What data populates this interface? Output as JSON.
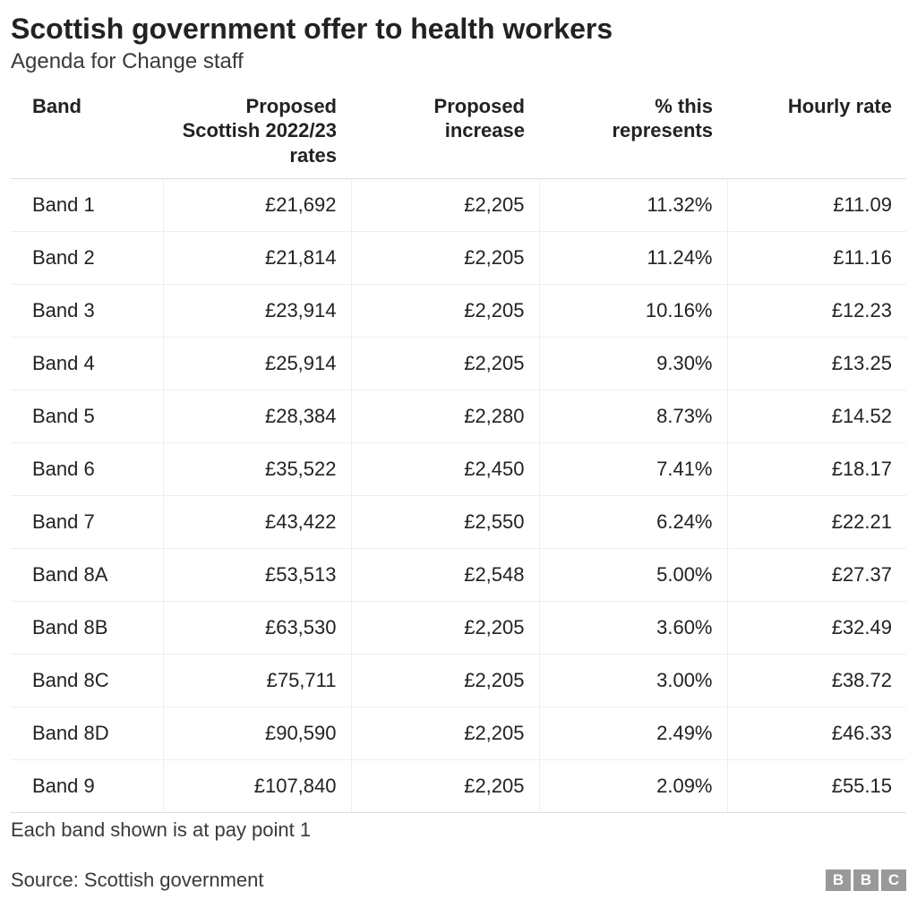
{
  "header": {
    "title": "Scottish government offer to health workers",
    "subtitle": "Agenda for Change staff"
  },
  "table": {
    "type": "table",
    "background_color": "#ffffff",
    "border_color": "#eeeeee",
    "header_border_color": "#dddddd",
    "text_color": "#222222",
    "header_fontsize": 22,
    "cell_fontsize": 22,
    "columns": [
      {
        "label": "Band",
        "align": "left",
        "width_pct": 17
      },
      {
        "label": "Proposed Scottish 2022/23 rates",
        "align": "right",
        "width_pct": 21
      },
      {
        "label": "Proposed increase",
        "align": "right",
        "width_pct": 21
      },
      {
        "label": "% this represents",
        "align": "right",
        "width_pct": 21
      },
      {
        "label": "Hourly rate",
        "align": "right",
        "width_pct": 20
      }
    ],
    "rows": [
      [
        "Band 1",
        "£21,692",
        "£2,205",
        "11.32%",
        "£11.09"
      ],
      [
        "Band 2",
        "£21,814",
        "£2,205",
        "11.24%",
        "£11.16"
      ],
      [
        "Band 3",
        "£23,914",
        "£2,205",
        "10.16%",
        "£12.23"
      ],
      [
        "Band 4",
        "£25,914",
        "£2,205",
        "9.30%",
        "£13.25"
      ],
      [
        "Band 5",
        "£28,384",
        "£2,280",
        "8.73%",
        "£14.52"
      ],
      [
        "Band 6",
        "£35,522",
        "£2,450",
        "7.41%",
        "£18.17"
      ],
      [
        "Band 7",
        "£43,422",
        "£2,550",
        "6.24%",
        "£22.21"
      ],
      [
        "Band 8A",
        "£53,513",
        "£2,548",
        "5.00%",
        "£27.37"
      ],
      [
        "Band 8B",
        "£63,530",
        "£2,205",
        "3.60%",
        "£32.49"
      ],
      [
        "Band 8C",
        "£75,711",
        "£2,205",
        "3.00%",
        "£38.72"
      ],
      [
        "Band 8D",
        "£90,590",
        "£2,205",
        "2.49%",
        "£46.33"
      ],
      [
        "Band 9",
        "£107,840",
        "£2,205",
        "2.09%",
        "£55.15"
      ]
    ]
  },
  "footnote": "Each band shown is at pay point 1",
  "source": "Source: Scottish government",
  "logo": {
    "letters": [
      "B",
      "B",
      "C"
    ],
    "box_color": "#999999",
    "text_color": "#ffffff"
  }
}
